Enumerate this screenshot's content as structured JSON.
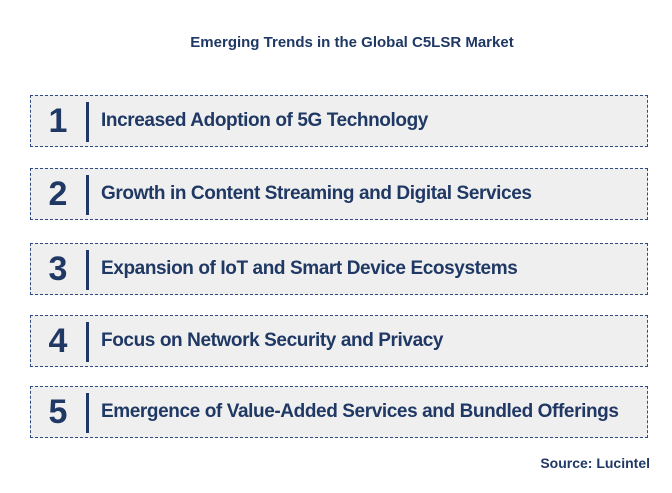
{
  "title": "Emerging Trends in the Global C5LSR Market",
  "trends": [
    {
      "number": "1",
      "label": "Increased Adoption of 5G Technology"
    },
    {
      "number": "2",
      "label": "Growth in Content Streaming and Digital Services"
    },
    {
      "number": "3",
      "label": "Expansion of IoT and Smart Device Ecosystems"
    },
    {
      "number": "4",
      "label": "Focus on Network Security and Privacy"
    },
    {
      "number": "5",
      "label": "Emergence of Value-Added Services and Bundled Offerings"
    }
  ],
  "source": "Source: Lucintel",
  "colors": {
    "text": "#1f3864",
    "box_fill": "#efefef",
    "box_border": "#2e4a80"
  }
}
